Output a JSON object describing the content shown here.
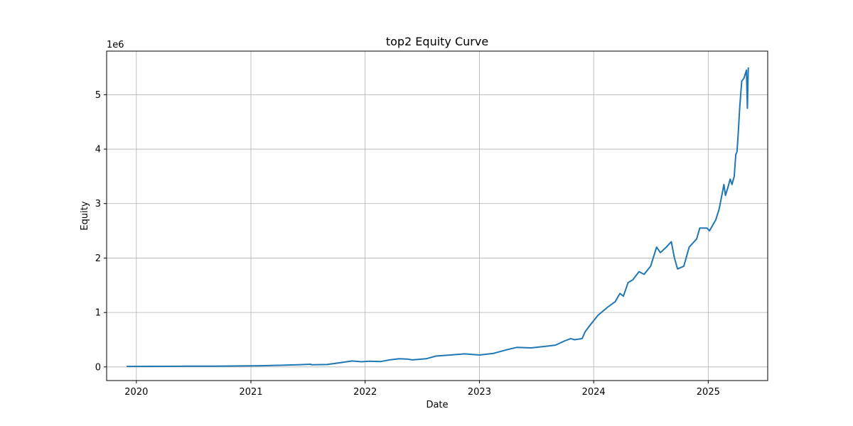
{
  "chart_data": {
    "type": "line",
    "title": "top2 Equity Curve",
    "xlabel": "Date",
    "ylabel": "Equity",
    "y_offset_label": "1e6",
    "x_ticks": [
      "2020",
      "2021",
      "2022",
      "2023",
      "2024",
      "2025"
    ],
    "y_ticks": [
      "0",
      "1",
      "2",
      "3",
      "4",
      "5"
    ],
    "grid": true,
    "legend": "none",
    "line_color": "#1f77b4",
    "xlim": [
      "2019-09-28",
      "2025-07-10"
    ],
    "ylim": [
      -250000,
      5800000
    ],
    "series": [
      {
        "name": "",
        "points": [
          [
            "2019-12-01",
            10000
          ],
          [
            "2020-03-01",
            11000
          ],
          [
            "2020-06-01",
            13000
          ],
          [
            "2020-09-01",
            15000
          ],
          [
            "2020-12-01",
            18000
          ],
          [
            "2021-02-01",
            22000
          ],
          [
            "2021-04-01",
            30000
          ],
          [
            "2021-06-01",
            40000
          ],
          [
            "2021-07-10",
            50000
          ],
          [
            "2021-07-15",
            40000
          ],
          [
            "2021-09-01",
            45000
          ],
          [
            "2021-10-15",
            80000
          ],
          [
            "2021-11-20",
            110000
          ],
          [
            "2021-12-20",
            95000
          ],
          [
            "2022-01-15",
            105000
          ],
          [
            "2022-02-20",
            100000
          ],
          [
            "2022-03-20",
            130000
          ],
          [
            "2022-04-20",
            150000
          ],
          [
            "2022-05-15",
            145000
          ],
          [
            "2022-06-01",
            130000
          ],
          [
            "2022-07-15",
            150000
          ],
          [
            "2022-08-15",
            200000
          ],
          [
            "2022-10-01",
            220000
          ],
          [
            "2022-11-15",
            240000
          ],
          [
            "2023-01-01",
            220000
          ],
          [
            "2023-02-15",
            250000
          ],
          [
            "2023-04-01",
            320000
          ],
          [
            "2023-05-01",
            360000
          ],
          [
            "2023-06-15",
            350000
          ],
          [
            "2023-08-01",
            380000
          ],
          [
            "2023-09-01",
            400000
          ],
          [
            "2023-10-01",
            480000
          ],
          [
            "2023-10-20",
            520000
          ],
          [
            "2023-11-01",
            500000
          ],
          [
            "2023-11-25",
            520000
          ],
          [
            "2023-12-05",
            650000
          ],
          [
            "2023-12-25",
            800000
          ],
          [
            "2024-01-15",
            950000
          ],
          [
            "2024-02-15",
            1100000
          ],
          [
            "2024-03-10",
            1200000
          ],
          [
            "2024-03-25",
            1350000
          ],
          [
            "2024-04-05",
            1300000
          ],
          [
            "2024-04-20",
            1550000
          ],
          [
            "2024-05-05",
            1600000
          ],
          [
            "2024-05-25",
            1750000
          ],
          [
            "2024-06-10",
            1700000
          ],
          [
            "2024-07-01",
            1850000
          ],
          [
            "2024-07-20",
            2200000
          ],
          [
            "2024-08-01",
            2100000
          ],
          [
            "2024-08-20",
            2200000
          ],
          [
            "2024-09-05",
            2300000
          ],
          [
            "2024-09-15",
            2000000
          ],
          [
            "2024-09-25",
            1800000
          ],
          [
            "2024-10-15",
            1850000
          ],
          [
            "2024-11-01",
            2200000
          ],
          [
            "2024-11-25",
            2350000
          ],
          [
            "2024-12-05",
            2550000
          ],
          [
            "2024-12-28",
            2550000
          ],
          [
            "2025-01-05",
            2500000
          ],
          [
            "2025-01-15",
            2600000
          ],
          [
            "2025-01-25",
            2700000
          ],
          [
            "2025-02-05",
            2900000
          ],
          [
            "2025-02-15",
            3200000
          ],
          [
            "2025-02-20",
            3350000
          ],
          [
            "2025-02-25",
            3150000
          ],
          [
            "2025-03-05",
            3300000
          ],
          [
            "2025-03-12",
            3450000
          ],
          [
            "2025-03-18",
            3350000
          ],
          [
            "2025-03-25",
            3500000
          ],
          [
            "2025-03-30",
            3900000
          ],
          [
            "2025-04-03",
            3950000
          ],
          [
            "2025-04-07",
            4300000
          ],
          [
            "2025-04-12",
            4800000
          ],
          [
            "2025-04-18",
            5250000
          ],
          [
            "2025-04-25",
            5300000
          ],
          [
            "2025-05-03",
            5450000
          ],
          [
            "2025-05-06",
            4750000
          ],
          [
            "2025-05-09",
            5500000
          ]
        ]
      }
    ]
  }
}
